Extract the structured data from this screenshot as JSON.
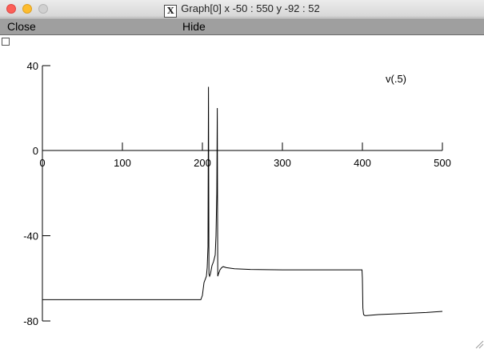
{
  "window": {
    "title": "Graph[0]  x -50 : 550  y -92 : 52",
    "title_icon": "x-window-icon",
    "controls": [
      "close",
      "minimize",
      "zoom"
    ]
  },
  "menu": {
    "close_label": "Close",
    "hide_label": "Hide"
  },
  "chart_data": {
    "type": "line",
    "title": "",
    "xlabel": "",
    "ylabel": "",
    "xlim": [
      0,
      500
    ],
    "ylim": [
      -80,
      40
    ],
    "xticks": [
      0,
      100,
      200,
      300,
      400,
      500
    ],
    "yticks": [
      40,
      0,
      -40,
      -80
    ],
    "grid": false,
    "series": [
      {
        "name": "v(.5)",
        "color": "#000000",
        "x": [
          0,
          198,
          200,
          201,
          202,
          205,
          206,
          207,
          207.6,
          208.2,
          209,
          210,
          211,
          212,
          214,
          216,
          217,
          218,
          218.6,
          219.2,
          220,
          222,
          224,
          226,
          230,
          240,
          260,
          300,
          350,
          399.5,
          400,
          400.6,
          401.5,
          403,
          405,
          420,
          450,
          480,
          500
        ],
        "y": [
          -70,
          -70,
          -68,
          -65,
          -62,
          -59,
          -55,
          -45,
          30,
          -58,
          -59,
          -58,
          -56,
          -54,
          -52,
          -49,
          -40,
          -20,
          20,
          -59,
          -58,
          -56,
          -55,
          -54.5,
          -55,
          -55.5,
          -55.8,
          -56,
          -56,
          -56,
          -60,
          -74,
          -77,
          -77.5,
          -77.5,
          -77,
          -76.5,
          -76,
          -75.5
        ]
      }
    ]
  }
}
